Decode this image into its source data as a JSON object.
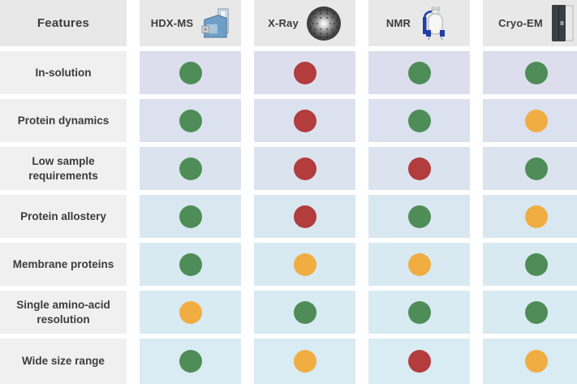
{
  "header": {
    "features_label": "Features",
    "columns": [
      {
        "label": "HDX-MS",
        "icon": "hdx-ms-instrument-icon"
      },
      {
        "label": "X-Ray",
        "icon": "xray-diffraction-icon"
      },
      {
        "label": "NMR",
        "icon": "nmr-spectrometer-icon"
      },
      {
        "label": "Cryo-EM",
        "icon": "cryo-em-microscope-icon"
      }
    ]
  },
  "rows": [
    {
      "feature": "In-solution",
      "ratings": [
        "green",
        "red",
        "green",
        "green"
      ]
    },
    {
      "feature": "Protein dynamics",
      "ratings": [
        "green",
        "red",
        "green",
        "yellow"
      ]
    },
    {
      "feature": "Low sample requirements",
      "ratings": [
        "green",
        "red",
        "red",
        "green"
      ]
    },
    {
      "feature": "Protein allostery",
      "ratings": [
        "green",
        "red",
        "green",
        "yellow"
      ]
    },
    {
      "feature": "Membrane proteins",
      "ratings": [
        "green",
        "yellow",
        "yellow",
        "green"
      ]
    },
    {
      "feature": "Single amino-acid resolution",
      "ratings": [
        "yellow",
        "green",
        "green",
        "green"
      ]
    },
    {
      "feature": "Wide size range",
      "ratings": [
        "green",
        "yellow",
        "red",
        "yellow"
      ]
    }
  ],
  "colors": {
    "green": "#4e8d57",
    "red": "#b33c3c",
    "yellow": "#f0ad42",
    "header_bg": "#e9e8e8",
    "feature_bg": "#f1f0f0",
    "row_backgrounds": [
      "#dcdeee",
      "#dbe1ee",
      "#dbe3ef",
      "#d9e7f0",
      "#d8e9f1",
      "#d8eaf2",
      "#d9ebf3"
    ]
  },
  "chart_data": {
    "type": "table",
    "columns": [
      "Features",
      "HDX-MS",
      "X-Ray",
      "NMR",
      "Cryo-EM"
    ],
    "rows": [
      [
        "In-solution",
        "green",
        "red",
        "green",
        "green"
      ],
      [
        "Protein dynamics",
        "green",
        "red",
        "green",
        "yellow"
      ],
      [
        "Low sample requirements",
        "green",
        "red",
        "red",
        "green"
      ],
      [
        "Protein allostery",
        "green",
        "red",
        "green",
        "yellow"
      ],
      [
        "Membrane proteins",
        "green",
        "yellow",
        "yellow",
        "green"
      ],
      [
        "Single amino-acid resolution",
        "yellow",
        "green",
        "green",
        "green"
      ],
      [
        "Wide size range",
        "green",
        "yellow",
        "red",
        "yellow"
      ]
    ]
  }
}
